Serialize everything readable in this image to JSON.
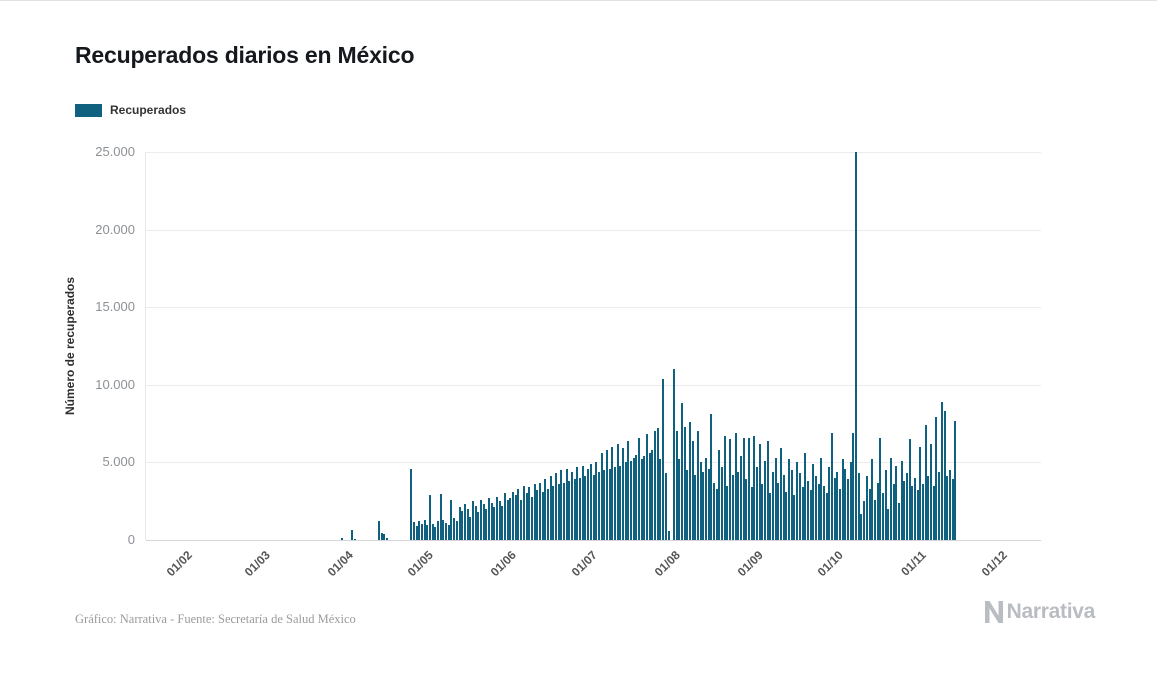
{
  "header": {
    "title": "Recuperados diarios en México"
  },
  "legend": {
    "label": "Recuperados",
    "color": "#0f617f"
  },
  "chart_data": {
    "type": "bar",
    "title": "Recuperados diarios en México",
    "xlabel": "",
    "ylabel": "Número de recuperados",
    "ylim": [
      0,
      25000
    ],
    "grid": true,
    "legend_position": "top-left",
    "bar_color": "#0f617f",
    "axis_domain": [
      "2020-01-17",
      "2020-12-16"
    ],
    "yticks": [
      {
        "value": 0,
        "label": "0"
      },
      {
        "value": 5000,
        "label": "5.000"
      },
      {
        "value": 10000,
        "label": "10.000"
      },
      {
        "value": 15000,
        "label": "15.000"
      },
      {
        "value": 20000,
        "label": "20.000"
      },
      {
        "value": 25000,
        "label": "25.000"
      }
    ],
    "xticks": [
      {
        "date": "2020-02-01",
        "label": "01/02"
      },
      {
        "date": "2020-03-01",
        "label": "01/03"
      },
      {
        "date": "2020-04-01",
        "label": "01/04"
      },
      {
        "date": "2020-05-01",
        "label": "01/05"
      },
      {
        "date": "2020-06-01",
        "label": "01/06"
      },
      {
        "date": "2020-07-01",
        "label": "01/07"
      },
      {
        "date": "2020-08-01",
        "label": "01/08"
      },
      {
        "date": "2020-09-01",
        "label": "01/09"
      },
      {
        "date": "2020-10-01",
        "label": "01/10"
      },
      {
        "date": "2020-11-01",
        "label": "01/11"
      },
      {
        "date": "2020-12-01",
        "label": "01/12"
      }
    ],
    "series_name": "Recuperados",
    "start_date": "2020-03-30",
    "frequency": "daily",
    "values": [
      150,
      0,
      0,
      0,
      620,
      80,
      0,
      0,
      0,
      0,
      0,
      0,
      0,
      0,
      1200,
      430,
      380,
      150,
      0,
      0,
      0,
      0,
      0,
      0,
      0,
      0,
      4600,
      1150,
      900,
      1250,
      1000,
      1300,
      950,
      2900,
      1050,
      850,
      1200,
      2950,
      1300,
      1100,
      950,
      2600,
      1400,
      1250,
      2100,
      1900,
      2300,
      2000,
      1500,
      2500,
      2200,
      1800,
      2600,
      2300,
      2000,
      2700,
      2400,
      2100,
      2800,
      2500,
      2200,
      3000,
      2600,
      2700,
      3100,
      2900,
      3300,
      2600,
      3500,
      3000,
      3400,
      2800,
      3600,
      3200,
      3700,
      3100,
      3900,
      3300,
      4100,
      3500,
      4300,
      3600,
      4500,
      3700,
      4600,
      3800,
      4400,
      3900,
      4700,
      4000,
      4800,
      4100,
      4600,
      4900,
      4200,
      5000,
      4400,
      5600,
      4500,
      5800,
      4600,
      6000,
      4700,
      6200,
      4800,
      5900,
      5000,
      6400,
      5100,
      5300,
      5500,
      6600,
      5200,
      5400,
      6800,
      5600,
      5800,
      7000,
      7200,
      5200,
      10400,
      4300,
      600,
      0,
      11000,
      7000,
      5200,
      8800,
      7300,
      4500,
      7600,
      6400,
      4200,
      7000,
      5000,
      4400,
      5300,
      4600,
      8100,
      3700,
      3300,
      5800,
      4700,
      6700,
      3500,
      6500,
      4200,
      6900,
      4400,
      5400,
      6600,
      3900,
      6600,
      3400,
      6700,
      4700,
      6200,
      3600,
      5100,
      6400,
      3000,
      4400,
      5300,
      3700,
      5900,
      4200,
      3100,
      5200,
      4500,
      2900,
      5000,
      4300,
      3400,
      5600,
      3800,
      3200,
      4900,
      4100,
      3600,
      5300,
      3500,
      3000,
      4700,
      6900,
      4000,
      4400,
      3300,
      5200,
      4600,
      3900,
      5000,
      6900,
      25000,
      4300,
      1700,
      2500,
      4100,
      3300,
      5200,
      2600,
      3700,
      6600,
      3000,
      4500,
      2000,
      5300,
      3600,
      4800,
      2400,
      5100,
      3800,
      4300,
      6500,
      3500,
      4000,
      3200,
      6000,
      3600,
      7400,
      4100,
      6200,
      3500,
      7900,
      4400,
      8900,
      8300,
      4100,
      4500,
      3900,
      7700
    ]
  },
  "footer": {
    "credit": "Gráfico: Narrativa - Fuente: Secretaría de Salud México",
    "logo_text": "Narrativa"
  }
}
